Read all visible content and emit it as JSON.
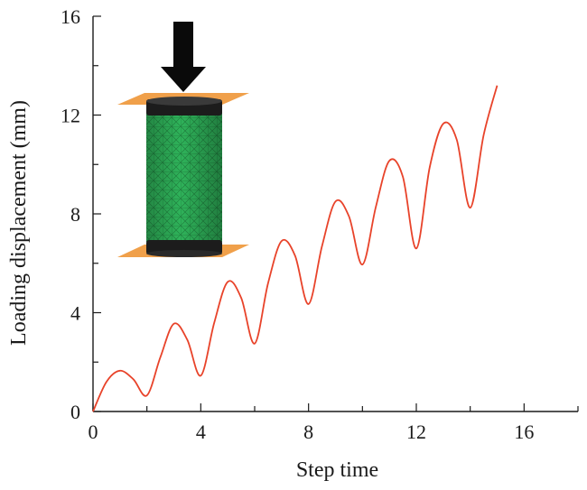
{
  "chart_data": {
    "type": "line",
    "title": "",
    "xlabel": "Step time",
    "ylabel": "Loading displacement (mm)",
    "xlim": [
      0,
      18
    ],
    "ylim": [
      0,
      16
    ],
    "xticks": [
      0,
      4,
      8,
      12,
      16
    ],
    "yticks": [
      0,
      4,
      8,
      12,
      16
    ],
    "grid": false,
    "legend": "none",
    "series": [
      {
        "color": "#e8432a",
        "x": [
          0,
          0.5,
          1,
          1.5,
          2,
          2.5,
          3,
          3.5,
          4,
          4.5,
          5,
          5.5,
          6,
          6.5,
          7,
          7.5,
          8,
          8.5,
          9,
          9.5,
          10,
          10.5,
          11,
          11.5,
          12,
          12.5,
          13,
          13.5,
          14,
          14.5,
          15
        ],
        "y": [
          0,
          1.2,
          1.65,
          1.3,
          0.65,
          2.2,
          3.55,
          2.9,
          1.45,
          3.6,
          5.25,
          4.6,
          2.75,
          5.2,
          6.9,
          6.3,
          4.35,
          6.7,
          8.5,
          7.9,
          5.95,
          8.3,
          10.15,
          9.5,
          6.6,
          9.9,
          11.65,
          11.0,
          8.25,
          11.2,
          13.2
        ]
      }
    ]
  },
  "inset": {
    "description_icon": "compression-specimen-icon",
    "arrow_color": "#0a0a0a",
    "body_color": "#2fb35a",
    "cap_color": "#1c1c1c",
    "plate_color": "#f0a04a"
  }
}
